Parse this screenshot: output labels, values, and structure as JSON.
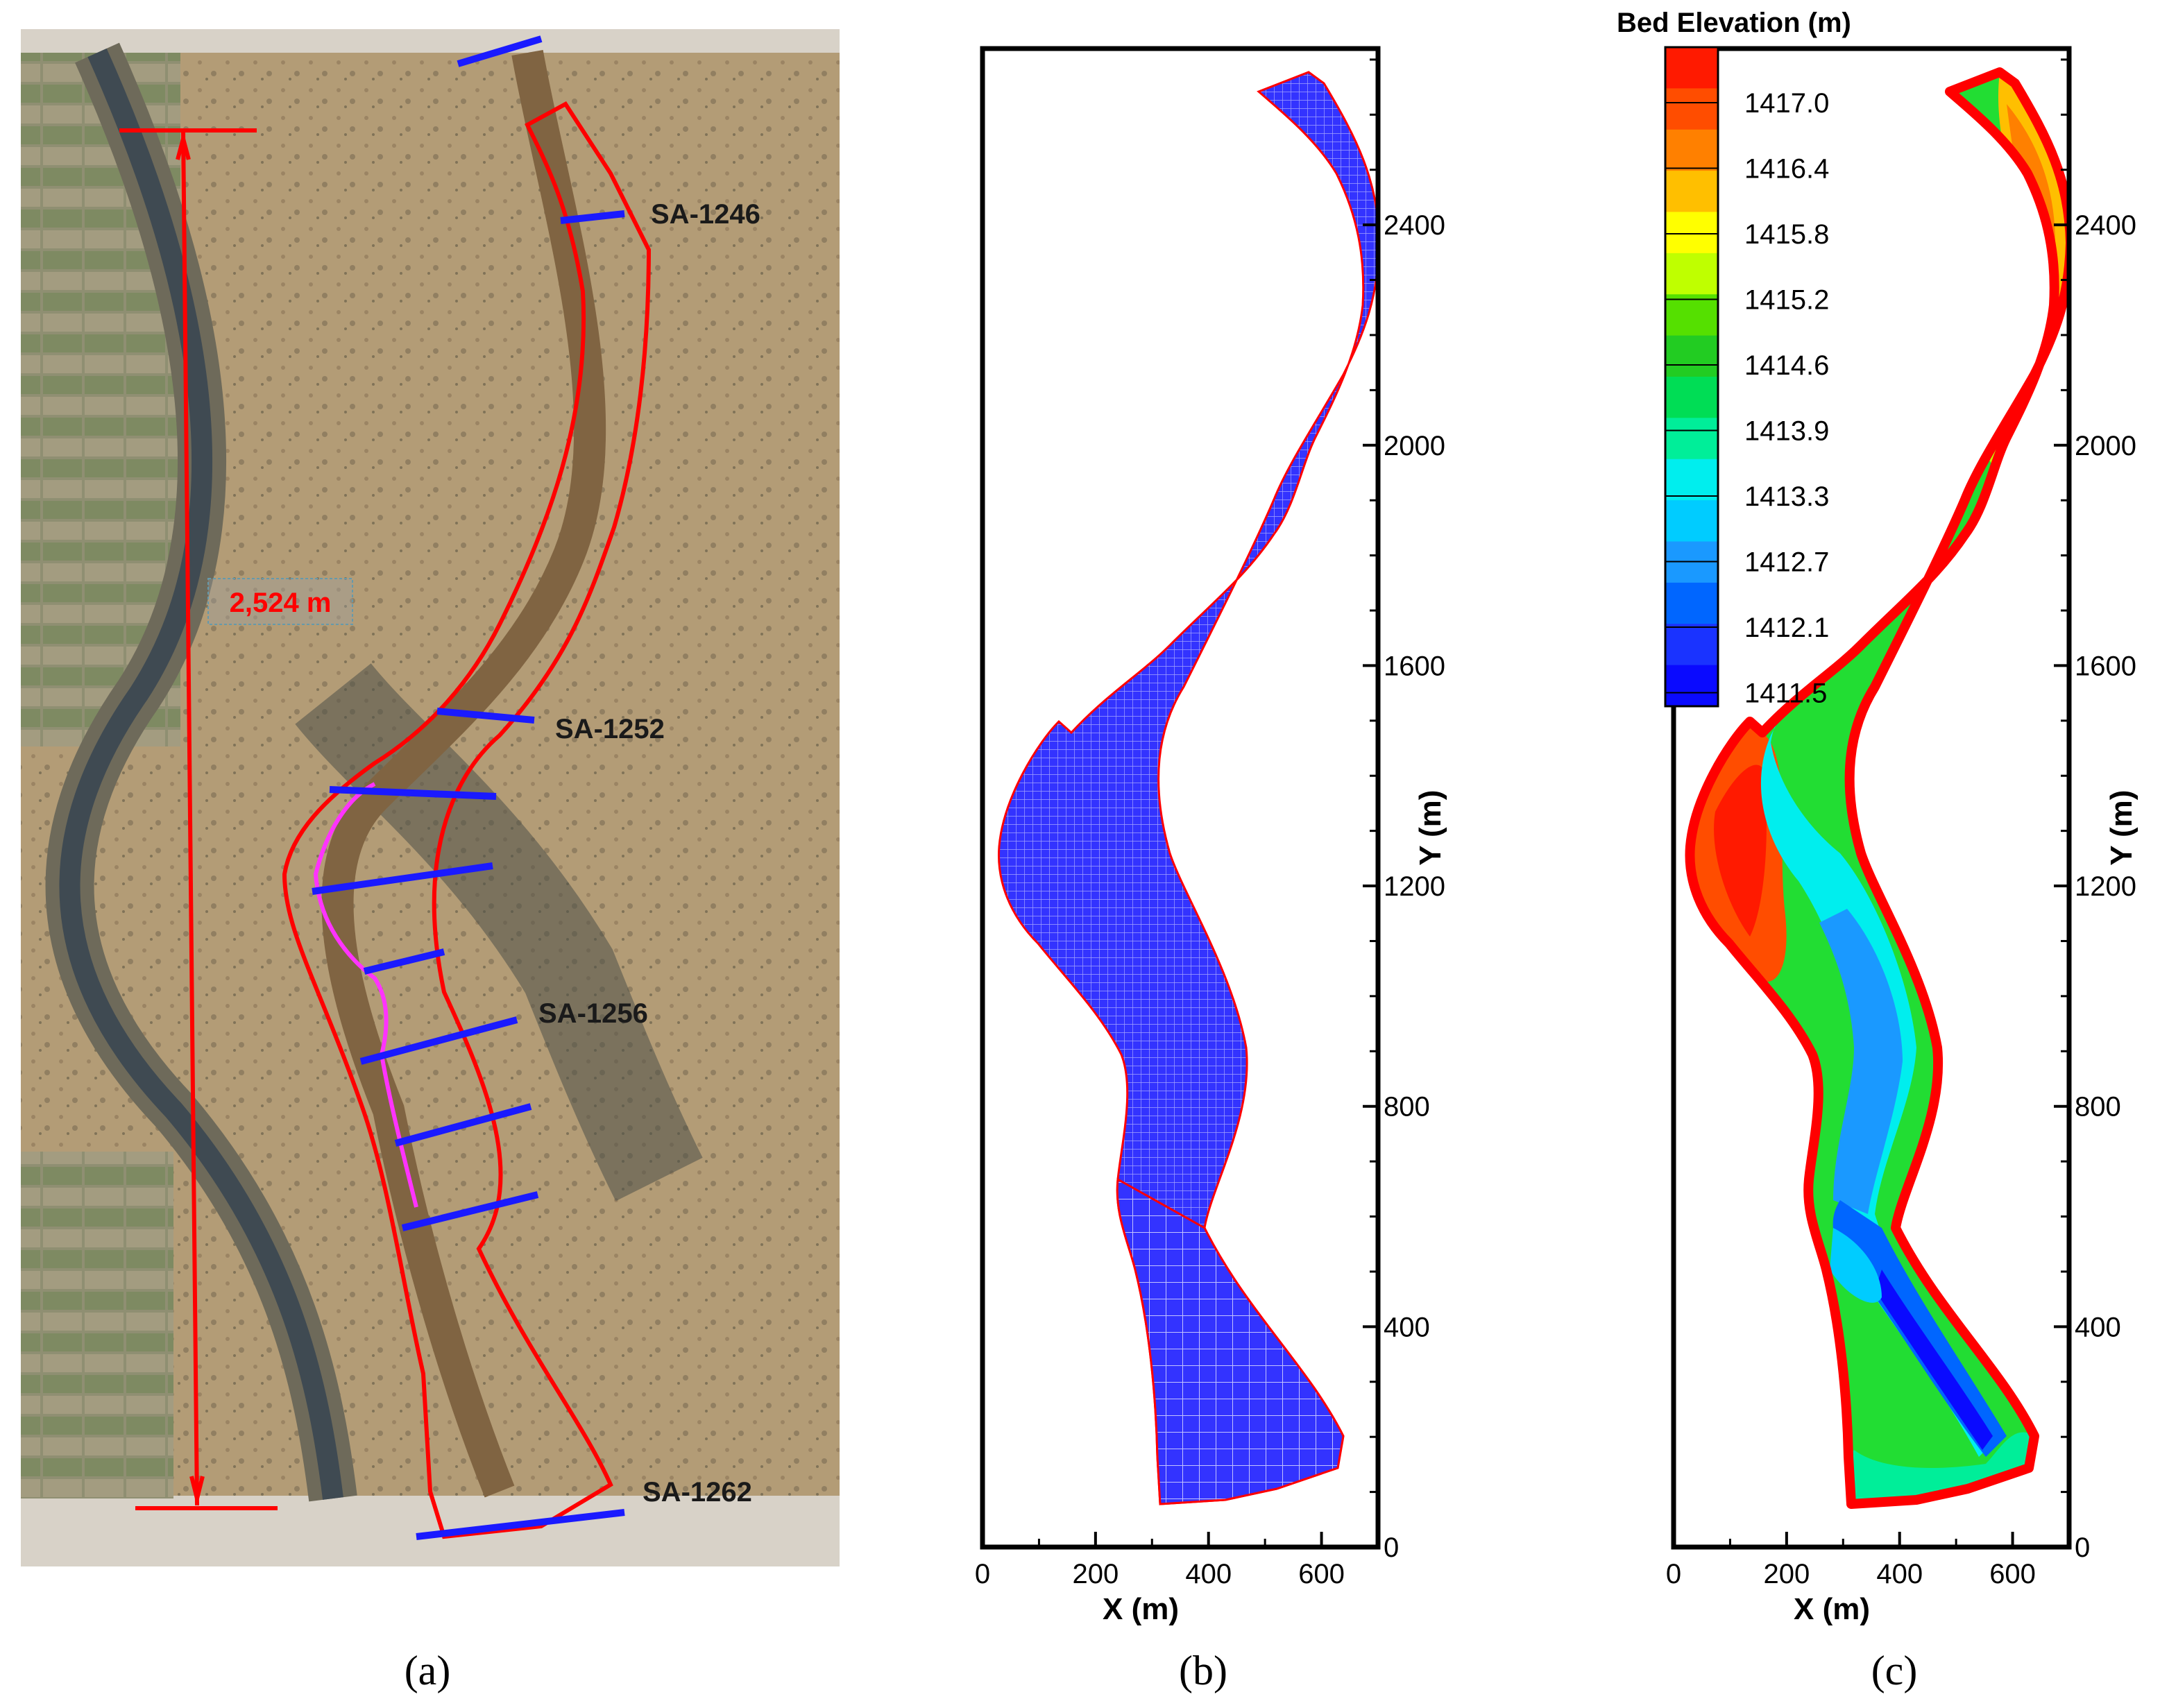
{
  "panel_a": {
    "caption": "(a)",
    "length_label": "2,524 m",
    "sections": [
      "SA-1246",
      "SA-1252",
      "SA-1256",
      "SA-1262"
    ],
    "colors": {
      "boundary": "#ff0000",
      "cross_section": "#1a1aff",
      "thalweg": "#ff33ff",
      "background": "#b49a74",
      "water": "#7b6040"
    }
  },
  "panel_b": {
    "caption": "(b)",
    "xlabel": "X (m)",
    "ylabel": "Y (m)",
    "x_ticks": [
      "0",
      "200",
      "400",
      "600"
    ],
    "y_ticks": [
      "0",
      "400",
      "800",
      "1200",
      "1600",
      "2000",
      "2400"
    ],
    "xlim": [
      0,
      700
    ],
    "ylim": [
      0,
      2720
    ],
    "colors": {
      "mesh": "#2020ff",
      "boundary": "#ff0000"
    }
  },
  "panel_c": {
    "caption": "(c)",
    "xlabel": "X (m)",
    "ylabel": "Y (m)",
    "x_ticks": [
      "0",
      "200",
      "400",
      "600"
    ],
    "y_ticks": [
      "0",
      "400",
      "800",
      "1200",
      "1600",
      "2000",
      "2400"
    ],
    "xlim": [
      0,
      700
    ],
    "ylim": [
      0,
      2720
    ],
    "legend_title": "Bed Elevation (m)",
    "legend_levels": [
      "1417.0",
      "1416.4",
      "1415.8",
      "1415.2",
      "1414.6",
      "1413.9",
      "1413.3",
      "1412.7",
      "1412.1",
      "1411.5"
    ],
    "legend_colors": [
      "#ff1a00",
      "#ff4d00",
      "#ff8000",
      "#ffbf00",
      "#ffff00",
      "#bfff00",
      "#55e000",
      "#22cc22",
      "#00dd55",
      "#00ee99",
      "#00eeee",
      "#00ccff",
      "#1a99ff",
      "#0066ff",
      "#1a33ff",
      "#0a0aff"
    ]
  },
  "chart_data": [
    {
      "type": "heatmap",
      "title": "",
      "xlabel": "X (m)",
      "ylabel": "Y (m)",
      "xlim": [
        0,
        700
      ],
      "ylim": [
        0,
        2720
      ],
      "x_ticks": [
        0,
        200,
        400,
        600
      ],
      "y_ticks": [
        0,
        400,
        800,
        1200,
        1600,
        2000,
        2400
      ]
    },
    {
      "type": "heatmap",
      "title": "",
      "xlabel": "X (m)",
      "ylabel": "Y (m)",
      "xlim": [
        0,
        700
      ],
      "ylim": [
        0,
        2720
      ],
      "x_ticks": [
        0,
        200,
        400,
        600
      ],
      "y_ticks": [
        0,
        400,
        800,
        1200,
        1600,
        2000,
        2400
      ],
      "colorbar_title": "Bed Elevation (m)",
      "colorbar_levels": [
        1417.0,
        1416.4,
        1415.8,
        1415.2,
        1414.6,
        1413.9,
        1413.3,
        1412.7,
        1412.1,
        1411.5
      ]
    }
  ]
}
